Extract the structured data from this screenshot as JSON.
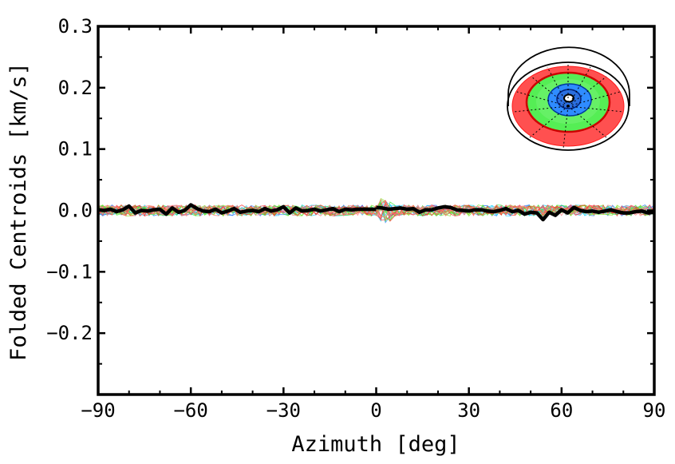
{
  "chart_data": {
    "type": "line",
    "title": "",
    "xlabel": "Azimuth [deg]",
    "ylabel": "Folded Centroids [km/s]",
    "xlim": [
      -90,
      90
    ],
    "ylim": [
      -0.3,
      0.3
    ],
    "xticks": [
      -90,
      -60,
      -30,
      0,
      30,
      60,
      90
    ],
    "xtick_labels": [
      "−90",
      "−60",
      "−30",
      "0",
      "30",
      "60",
      "90"
    ],
    "yticks": [
      -0.2,
      -0.1,
      0.0,
      0.1,
      0.2,
      0.3
    ],
    "ytick_labels": [
      "−0.2",
      "−0.1",
      "0.0",
      "0.1",
      "0.2",
      "0.3"
    ],
    "yminor_step": 0.05,
    "xminor_step": 10,
    "grid": false,
    "legend": "none",
    "band_colors": [
      "#2b7bff",
      "#1fd3ff",
      "#36e836",
      "#7fe020",
      "#ff3030",
      "#ff7a7a"
    ],
    "series": [
      {
        "color": "#000000",
        "x": [
          -90,
          -88,
          -86,
          -84,
          -82,
          -80,
          -78,
          -76,
          -74,
          -72,
          -70,
          -68,
          -66,
          -64,
          -62,
          -60,
          -58,
          -56,
          -54,
          -52,
          -50,
          -48,
          -46,
          -44,
          -42,
          -40,
          -38,
          -36,
          -34,
          -32,
          -30,
          -28,
          -26,
          -24,
          -22,
          -20,
          -18,
          -16,
          -14,
          -12,
          -10,
          -8,
          -6,
          -4,
          -2,
          0
        ],
        "values": [
          0.001,
          0.0,
          0.002,
          -0.002,
          0.001,
          0.007,
          -0.004,
          0.0,
          -0.001,
          0.001,
          0.002,
          -0.006,
          0.004,
          -0.003,
          0.0,
          0.009,
          0.003,
          -0.001,
          -0.002,
          0.002,
          -0.004,
          -0.001,
          0.003,
          -0.003,
          -0.001,
          0.0,
          -0.002,
          0.003,
          -0.001,
          0.001,
          0.006,
          -0.004,
          0.004,
          -0.001,
          0.0,
          0.002,
          -0.001,
          0.001,
          0.003,
          -0.002,
          0.002,
          0.001,
          0.002,
          0.002,
          0.002,
          0.002
        ]
      },
      {
        "color": "#000000",
        "x": [
          0,
          2,
          4,
          6,
          8,
          10,
          12,
          14,
          16,
          18,
          20,
          22,
          24,
          26,
          28,
          30,
          32,
          34,
          36,
          38,
          40,
          42,
          44,
          46,
          48,
          50,
          52,
          54,
          56,
          58,
          60,
          62,
          64,
          66,
          68,
          70,
          72,
          74,
          76,
          78,
          80,
          82,
          84,
          86,
          88,
          90
        ],
        "values": [
          0.005,
          0.004,
          0.002,
          0.003,
          0.004,
          0.002,
          0.003,
          -0.003,
          0.001,
          0.001,
          0.004,
          0.006,
          0.005,
          0.001,
          0.0,
          -0.001,
          0.001,
          0.001,
          -0.001,
          -0.002,
          0.0,
          0.003,
          -0.002,
          0.0,
          -0.006,
          -0.003,
          -0.004,
          -0.015,
          -0.003,
          -0.008,
          0.001,
          -0.004,
          0.005,
          0.0,
          -0.002,
          -0.001,
          -0.003,
          -0.001,
          0.001,
          -0.002,
          -0.004,
          -0.004,
          -0.002,
          -0.001,
          -0.004,
          -0.003
        ]
      }
    ]
  }
}
